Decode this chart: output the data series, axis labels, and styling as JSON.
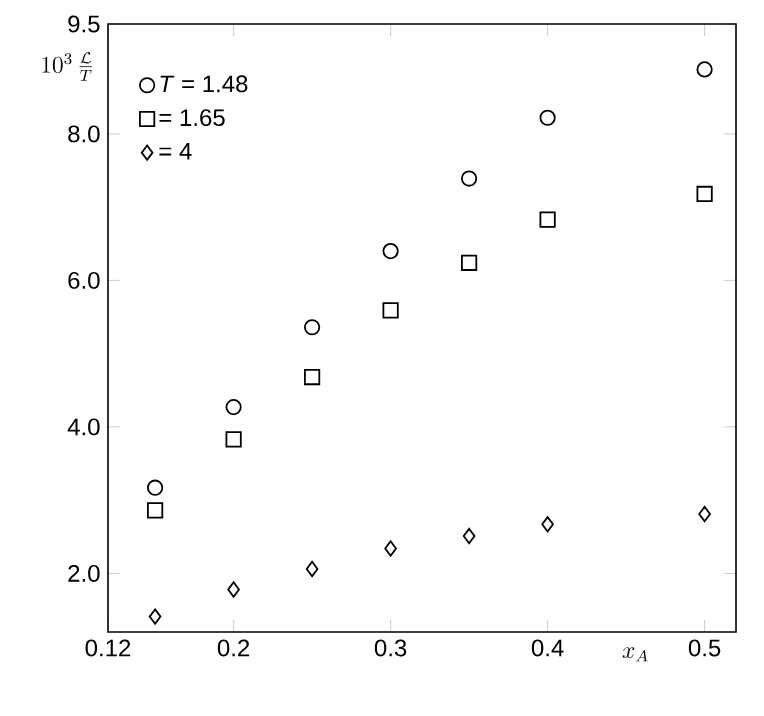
{
  "chart_data": {
    "type": "scatter",
    "ylabel": "10^{3}\\,\\frac{\\mathcal{L}}{T}",
    "xlabel": "x_{A}",
    "x": [
      0.15,
      0.2,
      0.25,
      0.3,
      0.35,
      0.4,
      0.5
    ],
    "series": [
      {
        "name": "*T* = 1.48",
        "color": "#000000",
        "marker": "circle",
        "values": [
          3.17,
          4.27,
          5.36,
          6.4,
          7.39,
          8.22,
          8.88
        ]
      },
      {
        "name": "= 1.65",
        "color": "#000000",
        "marker": "square",
        "values": [
          2.86,
          3.83,
          4.68,
          5.59,
          6.24,
          6.83,
          7.18
        ]
      },
      {
        "name": "= 4",
        "color": "#000000",
        "marker": "diamond",
        "values": [
          1.41,
          1.78,
          2.06,
          2.34,
          2.51,
          2.67,
          2.81
        ]
      }
    ],
    "xlim": [
      0.12,
      0.52
    ],
    "ylim": [
      1.2,
      9.5
    ],
    "xticks": [
      0.12,
      0.2,
      0.3,
      0.4,
      0.5
    ],
    "yticks": [
      {
        "value": 2,
        "label": "2.0"
      },
      {
        "value": 4,
        "label": "4.0"
      },
      {
        "value": 6,
        "label": "6.0"
      },
      {
        "value": 8,
        "label": "8.0"
      },
      9.5
    ],
    "legend": "top left"
  }
}
